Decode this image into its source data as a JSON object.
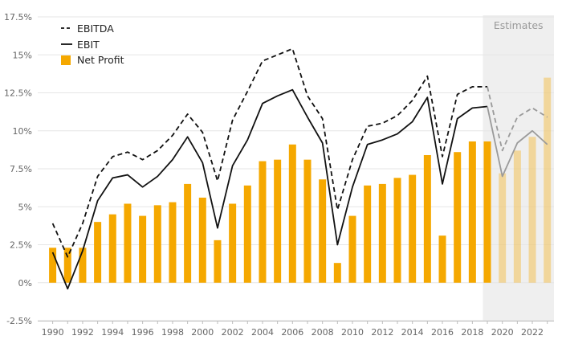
{
  "chart_data": {
    "type": "bar",
    "title": "",
    "xlabel": "",
    "ylabel": "",
    "ylim": [
      -2.5,
      17.5
    ],
    "y_ticks": [
      "17.5%",
      "15%",
      "12.5%",
      "10%",
      "7.5%",
      "5%",
      "2.5%",
      "0%",
      "-2.5%"
    ],
    "y_tick_values": [
      17.5,
      15,
      12.5,
      10,
      7.5,
      5,
      2.5,
      0,
      -2.5
    ],
    "x": [
      1990,
      1991,
      1992,
      1993,
      1994,
      1995,
      1996,
      1997,
      1998,
      1999,
      2000,
      2001,
      2002,
      2003,
      2004,
      2005,
      2006,
      2007,
      2008,
      2009,
      2010,
      2011,
      2012,
      2013,
      2014,
      2015,
      2016,
      2017,
      2018,
      2019,
      2020,
      2021,
      2022,
      2023
    ],
    "x_tick_labels": [
      "1990",
      "1992",
      "1994",
      "1996",
      "1998",
      "2000",
      "2002",
      "2004",
      "2006",
      "2008",
      "2010",
      "2012",
      "2014",
      "2016",
      "2018",
      "2020",
      "2022"
    ],
    "estimates_from": 2019,
    "estimates_label": "Estimates",
    "legend": {
      "position": "top-left",
      "entries": [
        "EBITDA",
        "EBIT",
        "Net Profit"
      ]
    },
    "grid": "horizontal",
    "colors": {
      "bars": "#f5a800",
      "lines": "#111111",
      "estimate_lines": "#9a9a9a",
      "estimate_shade": "#efefef"
    },
    "series": [
      {
        "name": "EBITDA",
        "type": "line",
        "style": "dashed",
        "values": [
          3.9,
          1.7,
          3.9,
          7.0,
          8.3,
          8.6,
          8.1,
          8.7,
          9.7,
          11.1,
          9.9,
          6.7,
          10.7,
          12.6,
          14.6,
          15.0,
          15.4,
          12.3,
          10.8,
          4.8,
          8.1,
          10.3,
          10.5,
          11.0,
          12.0,
          13.6,
          8.3,
          12.4,
          12.9,
          12.9,
          8.7,
          10.9,
          11.5,
          10.9
        ]
      },
      {
        "name": "EBIT",
        "type": "line",
        "style": "solid",
        "values": [
          2.0,
          -0.4,
          2.1,
          5.4,
          6.9,
          7.1,
          6.3,
          7.0,
          8.1,
          9.6,
          7.9,
          3.6,
          7.7,
          9.4,
          11.8,
          12.3,
          12.7,
          10.9,
          9.2,
          2.5,
          6.3,
          9.1,
          9.4,
          9.8,
          10.6,
          12.2,
          6.5,
          10.8,
          11.5,
          11.6,
          7.0,
          9.2,
          10.0,
          9.1
        ]
      },
      {
        "name": "Net Profit",
        "type": "bar",
        "values": [
          2.3,
          2.3,
          2.3,
          4.0,
          4.5,
          5.2,
          4.4,
          5.1,
          5.3,
          6.5,
          5.6,
          2.8,
          5.2,
          6.4,
          8.0,
          8.1,
          9.1,
          8.1,
          6.8,
          1.3,
          4.4,
          6.4,
          6.5,
          6.9,
          7.1,
          8.4,
          3.1,
          8.6,
          9.3,
          9.3,
          7.2,
          8.7,
          9.6,
          13.5
        ]
      }
    ]
  }
}
